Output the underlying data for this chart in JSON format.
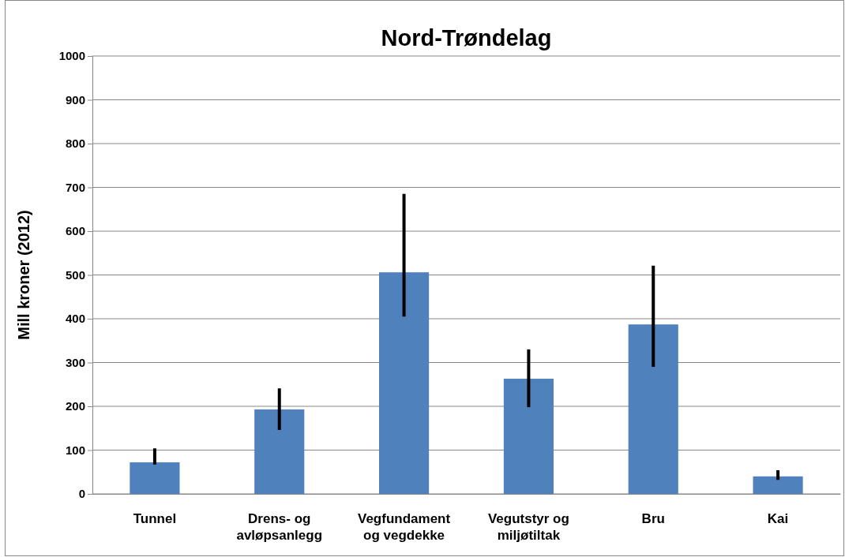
{
  "chart_data": {
    "type": "bar",
    "title": "Nord-Trøndelag",
    "ylabel": "Mill kroner (2012)",
    "categories": [
      "Tunnel",
      "Drens- og avløpsanlegg",
      "Vegfundament og vegdekke",
      "Vegutstyr og miljøtiltak",
      "Bru",
      "Kai"
    ],
    "values": [
      72,
      193,
      506,
      263,
      387,
      40
    ],
    "errors": [
      [
        67,
        104
      ],
      [
        146,
        241
      ],
      [
        405,
        685
      ],
      [
        198,
        330
      ],
      [
        290,
        521
      ],
      [
        32,
        54
      ]
    ],
    "color": "#4f81bd",
    "ylim": [
      0,
      1000
    ],
    "yticks": [
      0,
      100,
      200,
      300,
      400,
      500,
      600,
      700,
      800,
      900,
      1000
    ],
    "grid": "y"
  }
}
